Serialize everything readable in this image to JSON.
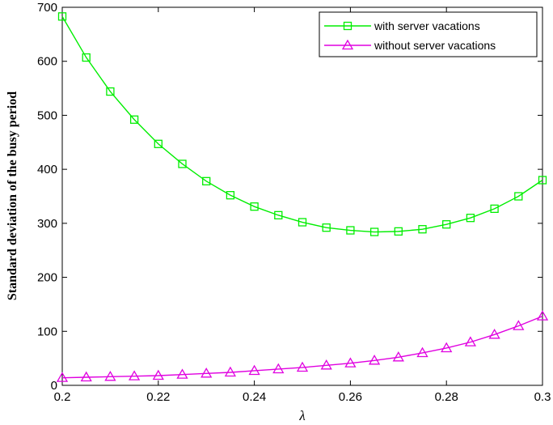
{
  "chart_data": {
    "type": "line",
    "xlabel": "λ",
    "ylabel": "Standard deviation of the busy period",
    "xlim": [
      0.2,
      0.3
    ],
    "ylim": [
      0,
      700
    ],
    "xticks": [
      "0.2",
      "0.22",
      "0.24",
      "0.26",
      "0.28",
      "0.3"
    ],
    "xtick_values": [
      0.2,
      0.22,
      0.24,
      0.26,
      0.28,
      0.3
    ],
    "yticks": [
      "0",
      "100",
      "200",
      "300",
      "400",
      "500",
      "600",
      "700"
    ],
    "ytick_values": [
      0,
      100,
      200,
      300,
      400,
      500,
      600,
      700
    ],
    "grid": false,
    "legend_position": "top-right",
    "x": [
      0.2,
      0.205,
      0.21,
      0.215,
      0.22,
      0.225,
      0.23,
      0.235,
      0.24,
      0.245,
      0.25,
      0.255,
      0.26,
      0.265,
      0.27,
      0.275,
      0.28,
      0.285,
      0.29,
      0.295,
      0.3
    ],
    "series": [
      {
        "name": "with server vacations",
        "color": "#00ee00",
        "marker": "square",
        "values": [
          683,
          607,
          544,
          492,
          447,
          410,
          378,
          352,
          331,
          315,
          302,
          292,
          287,
          284,
          285,
          289,
          298,
          310,
          327,
          350,
          380
        ]
      },
      {
        "name": "without server vacations",
        "color": "#e000e0",
        "marker": "triangle",
        "values": [
          14,
          15,
          16,
          17,
          18,
          20,
          22,
          24,
          27,
          30,
          33,
          37,
          41,
          46,
          52,
          60,
          69,
          80,
          94,
          110,
          128
        ]
      }
    ]
  }
}
